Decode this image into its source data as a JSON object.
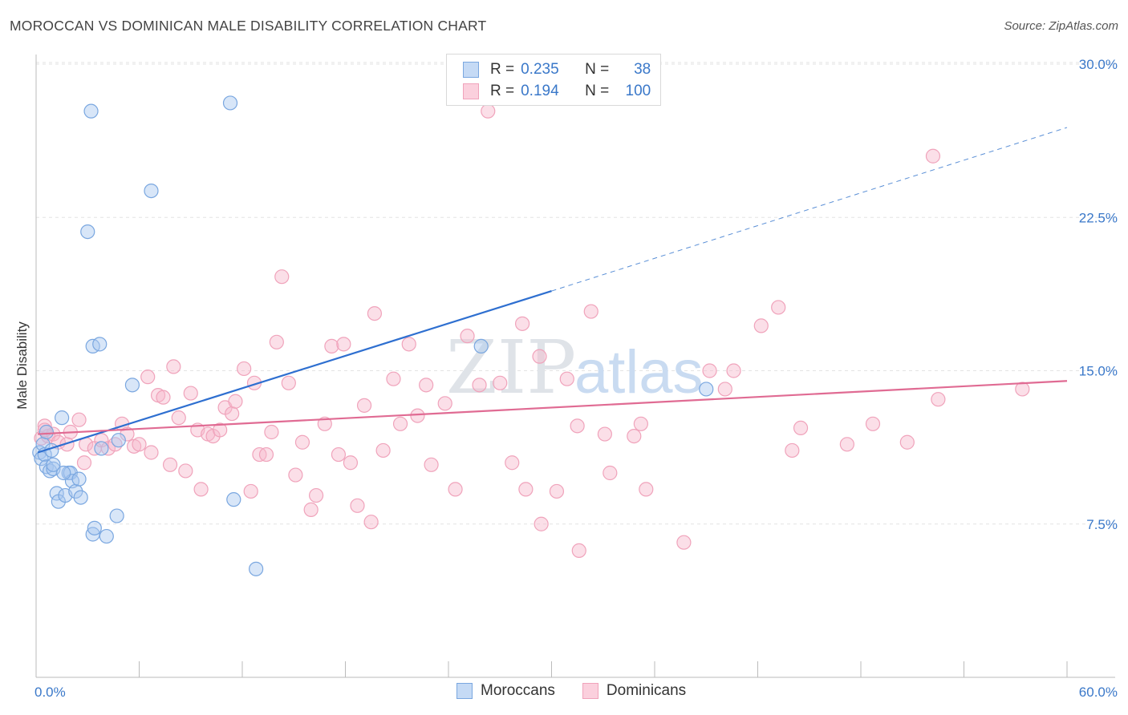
{
  "header": {
    "title": "MOROCCAN VS DOMINICAN MALE DISABILITY CORRELATION CHART",
    "source": "Source: ZipAtlas.com"
  },
  "legend": {
    "rows": [
      {
        "r_label": "R =",
        "r_value": "0.235",
        "n_label": "N =",
        "n_value": "38",
        "color": "#a9c8f0"
      },
      {
        "r_label": "R =",
        "r_value": "0.194",
        "n_label": "N =",
        "n_value": "100",
        "color": "#f6b8cb"
      }
    ]
  },
  "bottom_legend": {
    "items": [
      {
        "label": "Moroccans",
        "color": "#a9c8f0"
      },
      {
        "label": "Dominicans",
        "color": "#f6b8cb"
      }
    ]
  },
  "watermark": {
    "part1": "ZIP",
    "part2": "atlas"
  },
  "chart_data": {
    "type": "scatter",
    "title": "MOROCCAN VS DOMINICAN MALE DISABILITY CORRELATION CHART",
    "xlabel": "",
    "ylabel": "Male Disability",
    "xlim": [
      0,
      60
    ],
    "ylim": [
      0,
      31.5
    ],
    "x_tick_labels": [
      "0.0%",
      "60.0%"
    ],
    "y_ticks": [
      7.5,
      15.0,
      22.5,
      30.0
    ],
    "y_tick_labels": [
      "7.5%",
      "15.0%",
      "22.5%",
      "30.0%"
    ],
    "grid": "horizontal dashed",
    "legend_position": "top-center",
    "series": [
      {
        "name": "Moroccans",
        "color": "#5a8fd6",
        "fill": "#a9c8f0",
        "trend": {
          "x0": 0.1,
          "y0": 11.0,
          "x1": 30.0,
          "y1": 18.9,
          "extend_to_x": 60.0,
          "extend_to_y": 26.9
        },
        "points": [
          [
            0.2,
            11.0
          ],
          [
            0.3,
            10.7
          ],
          [
            0.4,
            11.4
          ],
          [
            0.5,
            10.9
          ],
          [
            0.6,
            10.3
          ],
          [
            0.8,
            10.1
          ],
          [
            0.9,
            11.1
          ],
          [
            1.0,
            10.2
          ],
          [
            1.2,
            9.0
          ],
          [
            1.3,
            8.6
          ],
          [
            1.5,
            12.7
          ],
          [
            1.7,
            8.9
          ],
          [
            1.9,
            10.0
          ],
          [
            2.0,
            10.0
          ],
          [
            2.1,
            9.6
          ],
          [
            2.3,
            9.1
          ],
          [
            2.5,
            9.7
          ],
          [
            2.6,
            8.8
          ],
          [
            1.0,
            10.4
          ],
          [
            1.6,
            10.0
          ],
          [
            3.2,
            27.7
          ],
          [
            3.3,
            16.2
          ],
          [
            3.7,
            16.3
          ],
          [
            3.8,
            11.2
          ],
          [
            3.3,
            7.0
          ],
          [
            3.4,
            7.3
          ],
          [
            4.1,
            6.9
          ],
          [
            4.7,
            7.9
          ],
          [
            4.8,
            11.6
          ],
          [
            5.6,
            14.3
          ],
          [
            6.7,
            23.8
          ],
          [
            3.0,
            21.8
          ],
          [
            11.3,
            28.1
          ],
          [
            11.5,
            8.7
          ],
          [
            12.8,
            5.3
          ],
          [
            25.9,
            16.2
          ],
          [
            39.0,
            14.1
          ],
          [
            0.6,
            12.0
          ]
        ]
      },
      {
        "name": "Dominicans",
        "color": "#e06b93",
        "fill": "#f6b8cb",
        "trend": {
          "x0": 0.1,
          "y0": 11.9,
          "x1": 60.0,
          "y1": 14.5
        },
        "points": [
          [
            0.3,
            11.7
          ],
          [
            0.5,
            12.3
          ],
          [
            0.7,
            11.8
          ],
          [
            1.0,
            11.9
          ],
          [
            1.3,
            11.5
          ],
          [
            1.8,
            11.4
          ],
          [
            2.0,
            12.0
          ],
          [
            2.5,
            12.6
          ],
          [
            2.9,
            11.4
          ],
          [
            2.8,
            10.5
          ],
          [
            3.4,
            11.2
          ],
          [
            3.8,
            11.6
          ],
          [
            4.2,
            11.2
          ],
          [
            4.6,
            11.4
          ],
          [
            5.0,
            12.4
          ],
          [
            5.3,
            11.9
          ],
          [
            5.7,
            11.3
          ],
          [
            6.0,
            11.4
          ],
          [
            6.5,
            14.7
          ],
          [
            6.7,
            11.0
          ],
          [
            7.1,
            13.8
          ],
          [
            7.4,
            13.7
          ],
          [
            7.8,
            10.4
          ],
          [
            8.0,
            15.2
          ],
          [
            8.3,
            12.7
          ],
          [
            8.7,
            10.1
          ],
          [
            9.0,
            13.9
          ],
          [
            9.4,
            12.1
          ],
          [
            9.6,
            9.2
          ],
          [
            10.0,
            11.9
          ],
          [
            10.3,
            11.8
          ],
          [
            10.7,
            12.1
          ],
          [
            11.0,
            13.2
          ],
          [
            11.4,
            12.9
          ],
          [
            11.6,
            13.5
          ],
          [
            12.1,
            15.1
          ],
          [
            12.5,
            9.1
          ],
          [
            12.7,
            14.4
          ],
          [
            13.0,
            10.9
          ],
          [
            13.4,
            10.9
          ],
          [
            13.7,
            12.0
          ],
          [
            14.0,
            16.4
          ],
          [
            14.3,
            19.6
          ],
          [
            14.7,
            14.4
          ],
          [
            15.1,
            9.9
          ],
          [
            15.5,
            11.5
          ],
          [
            16.0,
            8.2
          ],
          [
            16.3,
            8.9
          ],
          [
            16.8,
            12.4
          ],
          [
            17.2,
            16.2
          ],
          [
            17.6,
            10.9
          ],
          [
            17.9,
            16.3
          ],
          [
            18.3,
            10.5
          ],
          [
            18.7,
            8.4
          ],
          [
            19.1,
            13.3
          ],
          [
            19.5,
            7.6
          ],
          [
            19.7,
            17.8
          ],
          [
            20.2,
            11.1
          ],
          [
            20.8,
            14.6
          ],
          [
            21.2,
            12.4
          ],
          [
            21.7,
            16.3
          ],
          [
            22.2,
            12.8
          ],
          [
            22.7,
            14.3
          ],
          [
            23.0,
            10.4
          ],
          [
            23.8,
            13.4
          ],
          [
            24.4,
            9.2
          ],
          [
            25.1,
            16.7
          ],
          [
            25.8,
            14.3
          ],
          [
            26.3,
            27.7
          ],
          [
            27.0,
            14.4
          ],
          [
            27.7,
            10.5
          ],
          [
            28.3,
            17.3
          ],
          [
            28.5,
            9.2
          ],
          [
            29.3,
            15.7
          ],
          [
            29.4,
            7.5
          ],
          [
            30.3,
            9.1
          ],
          [
            30.9,
            14.6
          ],
          [
            31.5,
            12.3
          ],
          [
            31.6,
            6.2
          ],
          [
            32.3,
            17.9
          ],
          [
            33.1,
            11.9
          ],
          [
            33.4,
            10.0
          ],
          [
            34.8,
            11.8
          ],
          [
            35.2,
            12.4
          ],
          [
            35.5,
            9.2
          ],
          [
            37.7,
            6.6
          ],
          [
            39.2,
            15.0
          ],
          [
            40.1,
            14.1
          ],
          [
            40.6,
            15.0
          ],
          [
            42.2,
            17.2
          ],
          [
            43.2,
            18.1
          ],
          [
            44.0,
            11.1
          ],
          [
            44.5,
            12.2
          ],
          [
            47.2,
            11.4
          ],
          [
            48.7,
            12.4
          ],
          [
            50.7,
            11.5
          ],
          [
            52.2,
            25.5
          ],
          [
            52.5,
            13.6
          ],
          [
            57.4,
            14.1
          ],
          [
            0.5,
            12.1
          ]
        ]
      }
    ]
  }
}
